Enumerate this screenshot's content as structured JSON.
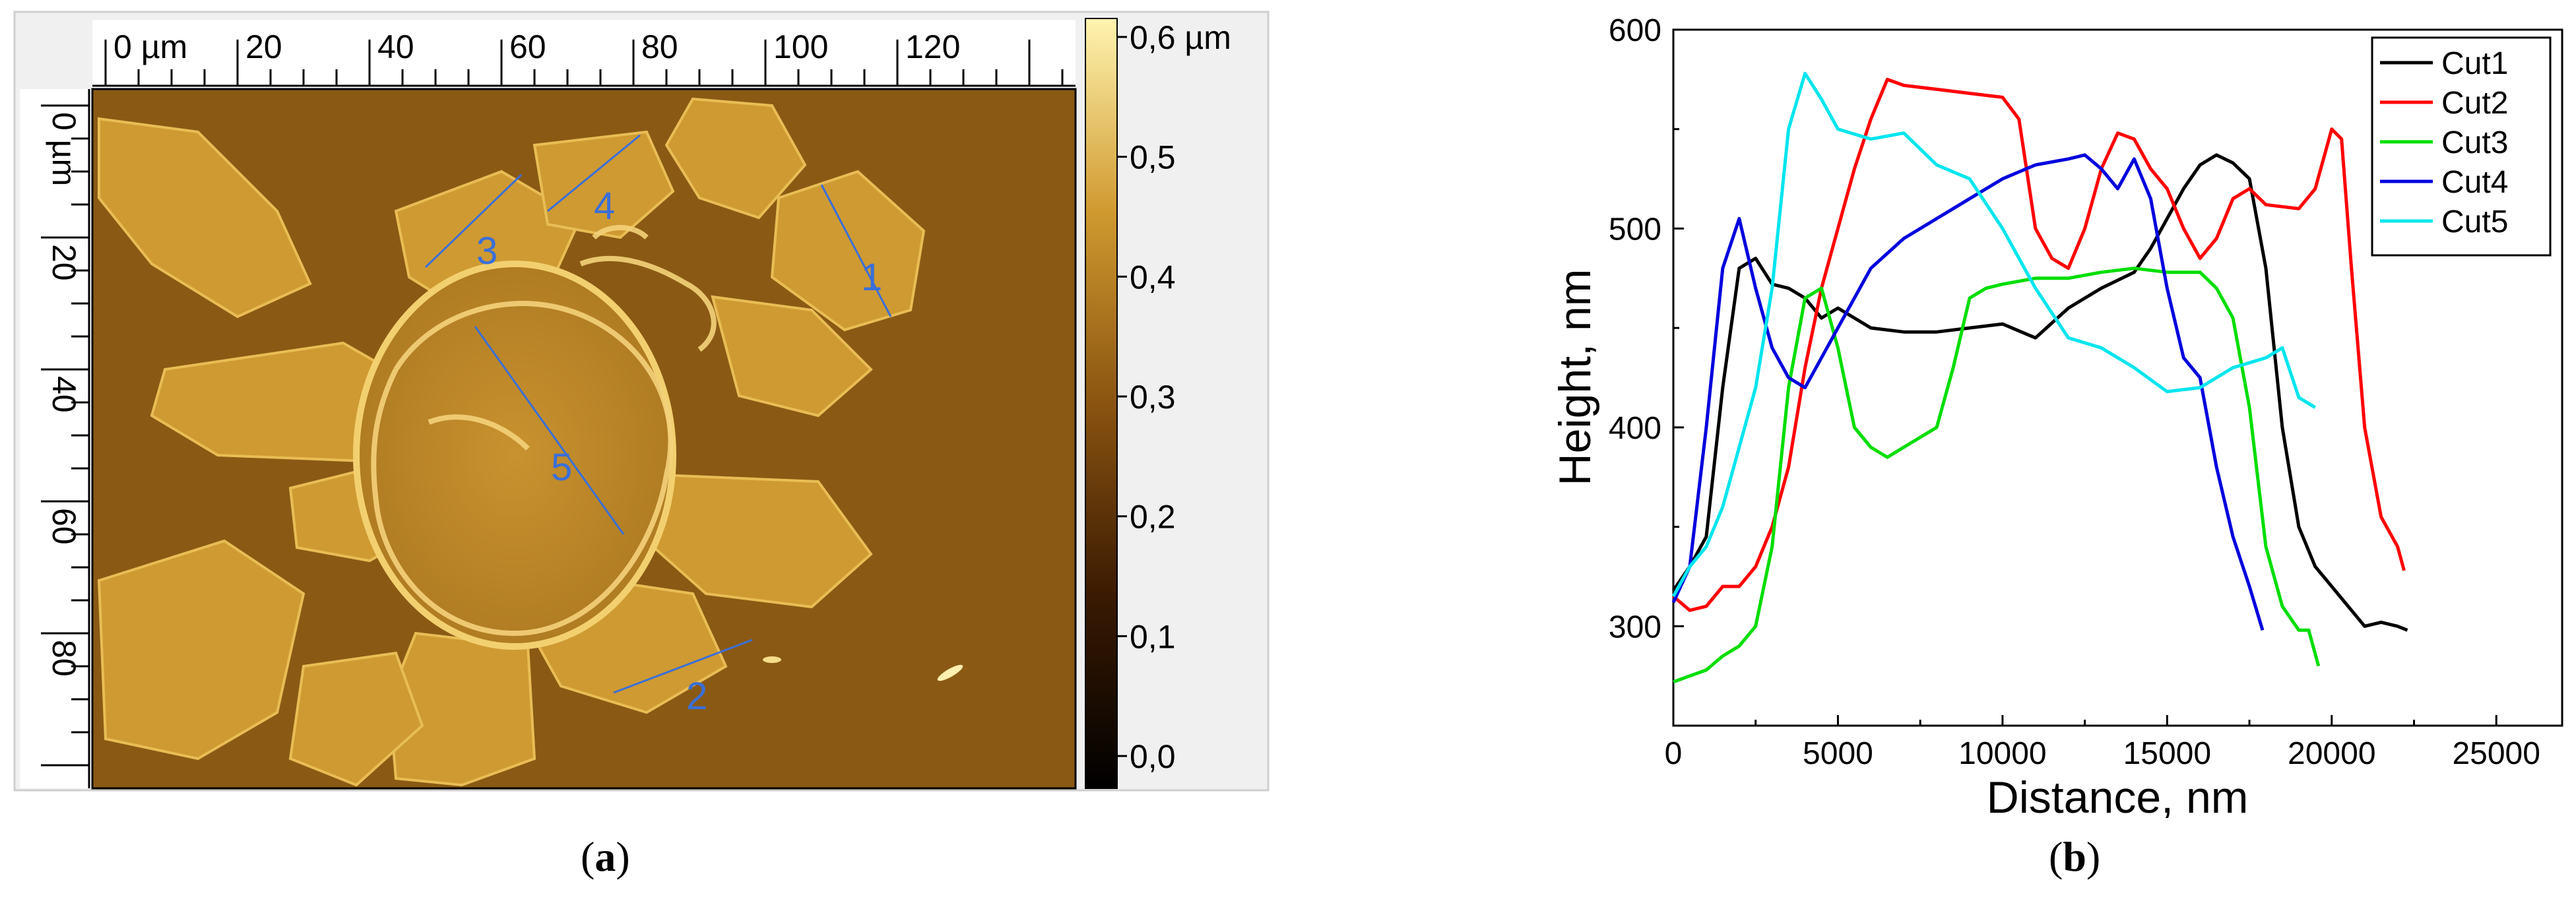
{
  "figure": {
    "caption_a": {
      "open": "(",
      "letter": "a",
      "close": ")"
    },
    "caption_b": {
      "open": "(",
      "letter": "b",
      "close": ")"
    }
  },
  "afm_image": {
    "x_axis_labels": [
      "0 µm",
      "20",
      "40",
      "60",
      "80",
      "100",
      "120"
    ],
    "x_axis_values_um": [
      0,
      20,
      40,
      60,
      80,
      100,
      120
    ],
    "y_axis_labels": [
      "0 µm",
      "20",
      "40",
      "60",
      "80"
    ],
    "y_axis_values_um": [
      0,
      20,
      40,
      60,
      80
    ],
    "colorbar_labels": [
      "0,6 µm",
      "0,5",
      "0,4",
      "0,3",
      "0,2",
      "0,1",
      "0,0"
    ],
    "colorbar_values_um": [
      0.6,
      0.5,
      0.4,
      0.3,
      0.2,
      0.1,
      0.0
    ],
    "cut_labels": [
      "1",
      "2",
      "3",
      "4",
      "5"
    ],
    "colors": {
      "background": "#8a5a14",
      "crystal": "#d09a30",
      "bright": "#f2d070",
      "cut_line": "#3a6fd8",
      "frame": "#dcdcdc"
    }
  },
  "chart_data": {
    "type": "line",
    "title": "",
    "xlabel": "Distance, nm",
    "ylabel": "Height, nm",
    "xlim": [
      0,
      27000
    ],
    "ylim": [
      250,
      600
    ],
    "xticks": [
      0,
      5000,
      10000,
      15000,
      20000,
      25000
    ],
    "yticks": [
      300,
      400,
      500,
      600
    ],
    "legend_position": "top-right",
    "series": [
      {
        "name": "Cut1",
        "color": "#000000",
        "x": [
          0,
          500,
          1000,
          1500,
          2000,
          2500,
          3000,
          3500,
          4000,
          4500,
          5000,
          6000,
          7000,
          8000,
          9000,
          10000,
          11000,
          12000,
          13000,
          14000,
          14500,
          15000,
          15500,
          16000,
          16500,
          17000,
          17500,
          18000,
          18500,
          19000,
          19500,
          20000,
          20500,
          21000,
          21500,
          22000,
          22300
        ],
        "y": [
          318,
          330,
          345,
          420,
          480,
          485,
          472,
          470,
          465,
          455,
          460,
          450,
          448,
          448,
          450,
          452,
          445,
          460,
          470,
          478,
          490,
          505,
          520,
          532,
          537,
          533,
          525,
          480,
          400,
          350,
          330,
          320,
          310,
          300,
          302,
          300,
          298
        ]
      },
      {
        "name": "Cut2",
        "color": "#ff0000",
        "x": [
          0,
          500,
          1000,
          1500,
          2000,
          2500,
          3000,
          3500,
          4000,
          4500,
          5000,
          5500,
          6000,
          6500,
          7000,
          8000,
          9000,
          10000,
          10500,
          11000,
          11500,
          12000,
          12500,
          13000,
          13500,
          14000,
          14500,
          15000,
          15500,
          16000,
          16500,
          17000,
          17500,
          18000,
          19000,
          19500,
          20000,
          20300,
          20600,
          21000,
          21500,
          22000,
          22200
        ],
        "y": [
          315,
          308,
          310,
          320,
          320,
          330,
          350,
          380,
          430,
          470,
          500,
          530,
          555,
          575,
          572,
          570,
          568,
          566,
          555,
          500,
          485,
          480,
          500,
          530,
          548,
          545,
          530,
          520,
          500,
          485,
          495,
          515,
          520,
          512,
          510,
          520,
          550,
          545,
          480,
          400,
          355,
          340,
          328
        ]
      },
      {
        "name": "Cut3",
        "color": "#00dd00",
        "x": [
          0,
          500,
          1000,
          1500,
          2000,
          2500,
          3000,
          3500,
          4000,
          4500,
          5000,
          5500,
          6000,
          6500,
          7000,
          7500,
          8000,
          8500,
          9000,
          9500,
          10000,
          11000,
          12000,
          13000,
          14000,
          15000,
          16000,
          16500,
          17000,
          17500,
          18000,
          18500,
          19000,
          19300,
          19600
        ],
        "y": [
          272,
          275,
          278,
          285,
          290,
          300,
          340,
          420,
          465,
          470,
          440,
          400,
          390,
          385,
          390,
          395,
          400,
          430,
          465,
          470,
          472,
          475,
          475,
          478,
          480,
          478,
          478,
          470,
          455,
          410,
          340,
          310,
          298,
          298,
          280
        ]
      },
      {
        "name": "Cut4",
        "color": "#0000dd",
        "x": [
          0,
          500,
          1000,
          1500,
          2000,
          2500,
          3000,
          3500,
          4000,
          5000,
          6000,
          7000,
          8000,
          9000,
          10000,
          11000,
          12000,
          12500,
          13000,
          13500,
          14000,
          14500,
          15000,
          15500,
          16000,
          16500,
          17000,
          17500,
          17900
        ],
        "y": [
          312,
          330,
          400,
          480,
          505,
          470,
          440,
          425,
          420,
          450,
          480,
          495,
          505,
          515,
          525,
          532,
          535,
          537,
          530,
          520,
          535,
          515,
          470,
          435,
          425,
          380,
          345,
          320,
          298
        ]
      },
      {
        "name": "Cut5",
        "color": "#00e5ee",
        "x": [
          0,
          500,
          1000,
          1500,
          2000,
          2500,
          3000,
          3500,
          4000,
          4500,
          5000,
          6000,
          7000,
          8000,
          9000,
          10000,
          11000,
          12000,
          13000,
          14000,
          15000,
          16000,
          17000,
          18000,
          18500,
          19000,
          19500
        ],
        "y": [
          315,
          330,
          340,
          360,
          390,
          420,
          470,
          550,
          578,
          565,
          550,
          545,
          548,
          532,
          525,
          500,
          470,
          445,
          440,
          430,
          418,
          420,
          430,
          435,
          440,
          415,
          410
        ]
      }
    ]
  }
}
